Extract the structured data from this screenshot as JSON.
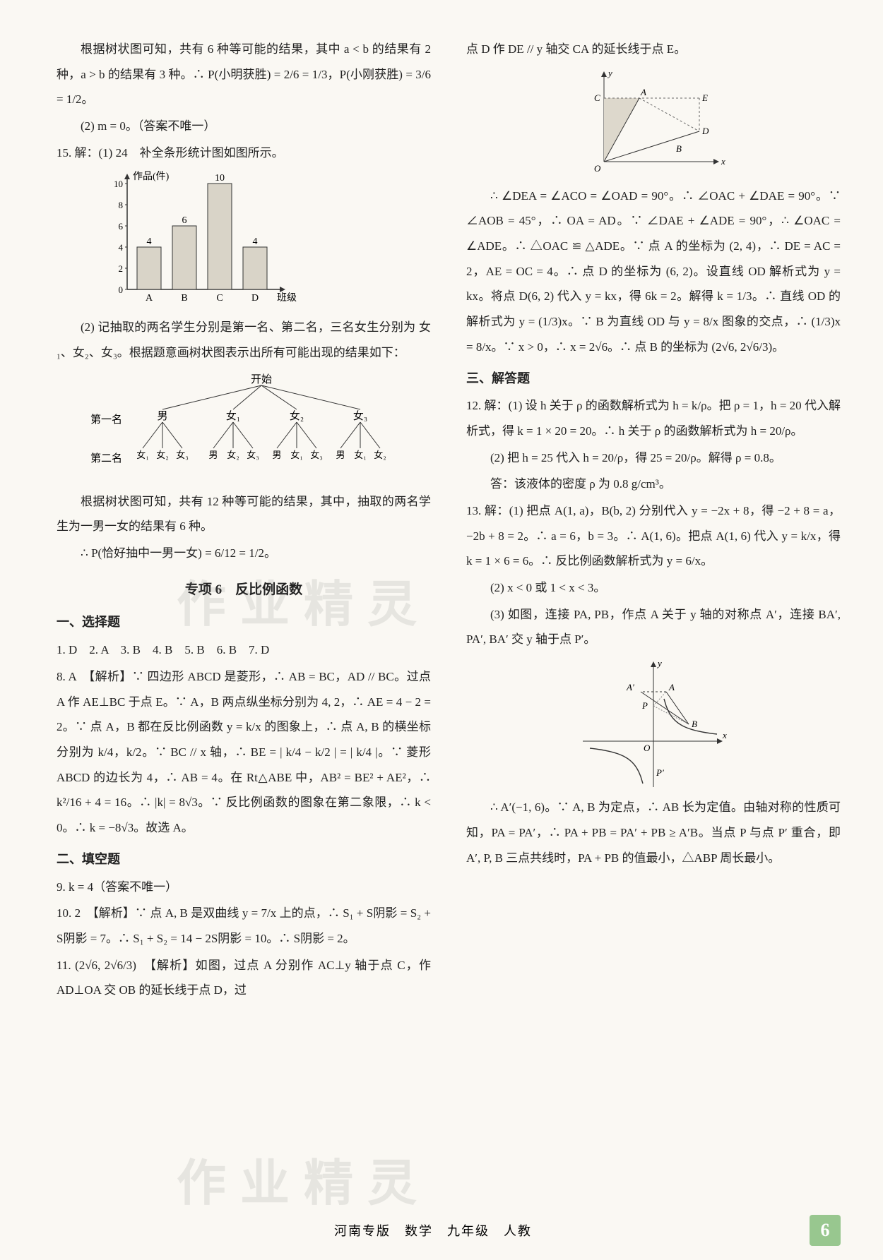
{
  "left": {
    "p1": "根据树状图可知，共有 6 种等可能的结果，其中 a < b 的结果有 2 种，a > b 的结果有 3 种。∴ P(小明获胜) = 2/6 = 1/3，P(小刚获胜) = 3/6 = 1/2。",
    "p2": "(2) m = 0。（答案不唯一）",
    "q15_head": "15. 解：(1) 24　补全条形统计图如图所示。",
    "bar": {
      "type": "bar",
      "categories": [
        "A",
        "B",
        "C",
        "D"
      ],
      "values": [
        4,
        6,
        10,
        4
      ],
      "yticks": [
        0,
        2,
        4,
        6,
        8,
        10
      ],
      "bar_color": "#d9d4c8",
      "axis_color": "#333333",
      "ylabel": "作品(件)",
      "xlabel": "班级",
      "value_labels": [
        "4",
        "6",
        "10",
        "4"
      ]
    },
    "p3": "(2) 记抽取的两名学生分别是第一名、第二名，三名女生分别为 女₁、女₂、女₃。根据题意画树状图表示出所有可能出现的结果如下：",
    "tree": {
      "type": "tree",
      "root": "开始",
      "level1": [
        "男",
        "女₁",
        "女₂",
        "女₃"
      ],
      "level2": [
        [
          "女₁",
          "女₂",
          "女₃"
        ],
        [
          "男",
          "女₂",
          "女₃"
        ],
        [
          "男",
          "女₁",
          "女₃"
        ],
        [
          "男",
          "女₁",
          "女₂"
        ]
      ],
      "row_labels": [
        "第一名",
        "第二名"
      ],
      "line_color": "#333"
    },
    "p4": "根据树状图可知，共有 12 种等可能的结果，其中，抽取的两名学生为一男一女的结果有 6 种。",
    "p5": "∴ P(恰好抽中一男一女) = 6/12 = 1/2。",
    "section_title": "专项 6　反比例函数",
    "sub1": "一、选择题",
    "answers": "1. D　2. A　3. B　4. B　5. B　6. B　7. D",
    "q8a": "8. A　【解析】∵ 四边形 ABCD 是菱形，∴ AB = BC，AD // BC。过点 A 作 AE⊥BC 于点 E。∵ A，B 两点纵坐标分别为 4, 2，∴ AE = 4 − 2 = 2。∵ 点 A，B 都在反比例函数 y = k/x 的图象上，∴ 点 A, B 的横坐标分别为 k/4，k/2。∵ BC // x 轴，∴ BE = | k/4 − k/2 | = | k/4 |。∵ 菱形 ABCD 的边长为 4，∴ AB = 4。在 Rt△ABE 中，AB² = BE² + AE²，∴ k²/16 + 4 = 16。∴ |k| = 8√3。∵ 反比例函数的图象在第二象限，∴ k < 0。∴ k = −8√3。故选 A。",
    "sub2": "二、填空题",
    "q9": "9. k = 4（答案不唯一）",
    "q10": "10. 2　【解析】∵ 点 A, B 是双曲线 y = 7/x 上的点，∴ S₁ + S阴影 = S₂ + S阴影 = 7。∴ S₁ + S₂ = 14 − 2S阴影 = 10。∴ S阴影 = 2。",
    "q11": "11. (2√6, 2√6/3)　【解析】如图，过点 A 分别作 AC⊥y 轴于点 C，作 AD⊥OA 交 OB 的延长线于点 D，过"
  },
  "right": {
    "p1": "点 D 作 DE // y 轴交 CA 的延长线于点 E。",
    "fig1": {
      "type": "geometry",
      "labels": {
        "C": "C",
        "A": "A",
        "E": "E",
        "D": "D",
        "B": "B",
        "O": "O",
        "x": "x",
        "y": "y"
      },
      "axis_color": "#333",
      "line_color": "#333",
      "dash_color": "#666"
    },
    "p2": "∴ ∠DEA = ∠ACO = ∠OAD = 90°。∴ ∠OAC + ∠DAE = 90°。∵ ∠AOB = 45°，∴ OA = AD。∵ ∠DAE + ∠ADE = 90°，∴ ∠OAC = ∠ADE。∴ △OAC ≌ △ADE。∵ 点 A 的坐标为 (2, 4)，∴ DE = AC = 2，AE = OC = 4。∴ 点 D 的坐标为 (6, 2)。设直线 OD 解析式为 y = kx。将点 D(6, 2) 代入 y = kx，得 6k = 2。解得 k = 1/3。∴ 直线 OD 的解析式为 y = (1/3)x。∵ B 为直线 OD 与 y = 8/x 图象的交点，∴ (1/3)x = 8/x。∵ x > 0，∴ x = 2√6。∴ 点 B 的坐标为 (2√6, 2√6/3)。",
    "sub3": "三、解答题",
    "q12": "12. 解：(1) 设 h 关于 ρ 的函数解析式为 h = k/ρ。把 ρ = 1，h = 20 代入解析式，得 k = 1 × 20 = 20。∴ h 关于 ρ 的函数解析式为 h = 20/ρ。",
    "q12b": "(2) 把 h = 25 代入 h = 20/ρ，得 25 = 20/ρ。解得 ρ = 0.8。",
    "q12c": "答：该液体的密度 ρ 为 0.8 g/cm³。",
    "q13a": "13. 解：(1) 把点 A(1, a)，B(b, 2) 分别代入 y = −2x + 8，得 −2 + 8 = a，−2b + 8 = 2。∴ a = 6，b = 3。∴ A(1, 6)。把点 A(1, 6) 代入 y = k/x，得 k = 1 × 6 = 6。∴ 反比例函数解析式为 y = 6/x。",
    "q13b": "(2) x < 0 或 1 < x < 3。",
    "q13c": "(3) 如图，连接 PA, PB，作点 A 关于 y 轴的对称点 A′，连接 BA′, PA′, BA′ 交 y 轴于点 P′。",
    "fig2": {
      "type": "geometry",
      "labels": {
        "A": "A",
        "A'": "A′",
        "B": "B",
        "P": "P",
        "P'": "P′",
        "O": "O",
        "x": "x",
        "y": "y"
      },
      "axis_color": "#333",
      "curve_color": "#333"
    },
    "p3": "∴ A′(−1, 6)。∵ A, B 为定点，∴ AB 长为定值。由轴对称的性质可知，PA = PA′，∴ PA + PB = PA′ + PB ≥ A′B。当点 P 与点 P′ 重合，即 A′, P, B 三点共线时，PA + PB 的值最小，△ABP 周长最小。"
  },
  "footer": {
    "center": "河南专版　数学　九年级　人教",
    "page": "6"
  },
  "watermark": "作业精灵"
}
